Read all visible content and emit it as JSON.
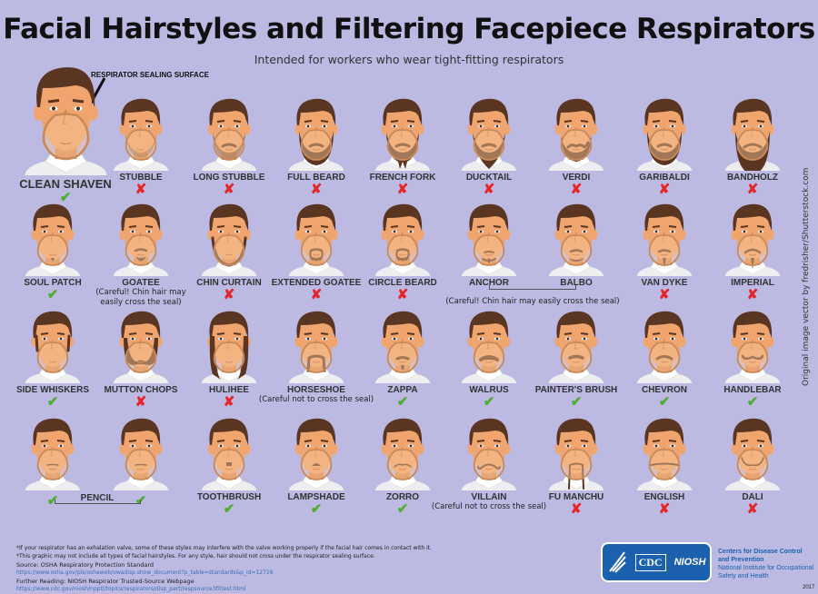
{
  "title": "Facial Hairstyles and Filtering Facepiece Respirators",
  "subtitle": "Intended for workers who wear tight-fitting respirators",
  "sealing_surface_label": "RESPIRATOR SEALING SURFACE",
  "colors": {
    "background": "#bcb9e3",
    "ok": "#4caf2f",
    "no": "#e52528",
    "hair": "#5a3521",
    "skin": "#f0a56e",
    "mask": "#c98a5a"
  },
  "rows": [
    [
      {
        "label": "CLEAN SHAVEN",
        "beard": "none",
        "mark": "ok"
      },
      {
        "label": "STUBBLE",
        "beard": "stubble",
        "mark": "no"
      },
      {
        "label": "LONG STUBBLE",
        "beard": "longstubble",
        "mark": "no"
      },
      {
        "label": "FULL BEARD",
        "beard": "full",
        "mark": "no"
      },
      {
        "label": "FRENCH FORK",
        "beard": "fork",
        "mark": "no"
      },
      {
        "label": "DUCKTAIL",
        "beard": "ducktail",
        "mark": "no"
      },
      {
        "label": "VERDI",
        "beard": "verdi",
        "mark": "no"
      },
      {
        "label": "GARIBALDI",
        "beard": "full",
        "mark": "no"
      },
      {
        "label": "BANDHOLZ",
        "beard": "long",
        "mark": "no"
      }
    ],
    [
      {
        "label": "SOUL PATCH",
        "beard": "soulpatch",
        "mark": "ok"
      },
      {
        "label": "GOATEE",
        "beard": "goatee",
        "mark": "",
        "note": "(Careful! Chin hair may easily cross the seal)"
      },
      {
        "label": "CHIN CURTAIN",
        "beard": "chincurtain",
        "mark": "no"
      },
      {
        "label": "EXTENDED GOATEE",
        "beard": "extgoatee",
        "mark": "no"
      },
      {
        "label": "CIRCLE BEARD",
        "beard": "circle",
        "mark": "no"
      },
      {
        "label": "ANCHOR",
        "beard": "anchor",
        "mark": ""
      },
      {
        "label": "BALBO",
        "beard": "balbo",
        "mark": ""
      },
      {
        "label": "VAN DYKE",
        "beard": "vandyke",
        "mark": "no"
      },
      {
        "label": "IMPERIAL",
        "beard": "imperial",
        "mark": "no"
      }
    ],
    [
      {
        "label": "SIDE WHISKERS",
        "beard": "sideburns",
        "mark": "ok"
      },
      {
        "label": "MUTTON CHOPS",
        "beard": "mutton",
        "mark": "no"
      },
      {
        "label": "HULIHEE",
        "beard": "hulihee",
        "mark": "no"
      },
      {
        "label": "HORSESHOE",
        "beard": "horseshoe",
        "mark": "",
        "note": "(Careful not to cross the seal)"
      },
      {
        "label": "ZAPPA",
        "beard": "zappa",
        "mark": "ok"
      },
      {
        "label": "WALRUS",
        "beard": "walrus",
        "mark": "ok"
      },
      {
        "label": "PAINTER'S BRUSH",
        "beard": "brush",
        "mark": "ok"
      },
      {
        "label": "CHEVRON",
        "beard": "chevron",
        "mark": "ok"
      },
      {
        "label": "HANDLEBAR",
        "beard": "handlebar",
        "mark": "ok"
      }
    ],
    [
      {
        "label": "",
        "beard": "pencil",
        "mark": "ok"
      },
      {
        "label": "",
        "beard": "pencil",
        "mark": "ok"
      },
      {
        "label": "TOOTHBRUSH",
        "beard": "toothbrush",
        "mark": "ok"
      },
      {
        "label": "LAMPSHADE",
        "beard": "lampshade",
        "mark": "ok"
      },
      {
        "label": "ZORRO",
        "beard": "zorro",
        "mark": "ok"
      },
      {
        "label": "VILLAIN",
        "beard": "villain",
        "mark": "",
        "note": "(Careful not to cross the seal)"
      },
      {
        "label": "FU MANCHU",
        "beard": "fumanchu",
        "mark": "no"
      },
      {
        "label": "ENGLISH",
        "beard": "english",
        "mark": "no"
      },
      {
        "label": "DALI",
        "beard": "dali",
        "mark": "no"
      }
    ]
  ],
  "groups": {
    "anchor_balbo_note": "(Careful! Chin hair may easily cross the seal)",
    "pencil_label": "PENCIL"
  },
  "side_credit": "Original image vector by fredrisher/Shutterstock.com",
  "footer": {
    "note1": "*If your respirator has an exhalation valve, some of these styles may interfere with the valve working properly if the facial hair comes in contact with it.",
    "note2": "*This graphic may not include all types of facial hairstyles. For any style, hair should not cross under the respirator sealing surface.",
    "source": "Source: OSHA Respiratory Protection Standard",
    "source_url": "https://www.osha.gov/pls/oshaweb/owadisp.show_document?p_table=standards&p_id=12716",
    "further": "Further Reading: NIOSH Respirator Trusted-Source Webpage",
    "further_url": "https://www.cdc.gov/niosh/npptl/topics/respirators/disp_part/respsource3fittest.html"
  },
  "logo": {
    "cdc": "CDC",
    "niosh": "NIOSH"
  },
  "agency": {
    "line1": "Centers for Disease Control",
    "line2": "and Prevention",
    "line3": "National Institute for Occupational",
    "line4": "Safety and Health"
  },
  "year": "2017",
  "marks": {
    "ok": "✔",
    "no": "✘"
  }
}
